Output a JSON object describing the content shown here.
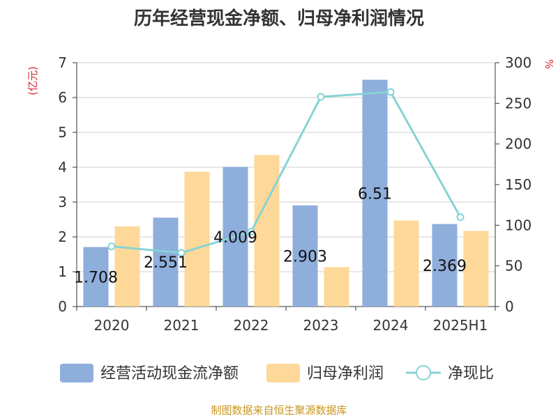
{
  "chart_data": {
    "type": "bar",
    "title": "历年经营现金净额、归母净利润情况",
    "categories": [
      "2020",
      "2021",
      "2022",
      "2023",
      "2024",
      "2025H1"
    ],
    "series": [
      {
        "name": "经营活动现金流净额",
        "type": "bar",
        "axis": "left",
        "color": "#8eaedc",
        "values": [
          1.708,
          2.551,
          4.009,
          2.903,
          6.51,
          2.369
        ],
        "labels": [
          "1.708",
          "2.551",
          "4.009",
          "2.903",
          "6.51",
          "2.369"
        ]
      },
      {
        "name": "归母净利润",
        "type": "bar",
        "axis": "left",
        "color": "#fdd898",
        "values": [
          2.3,
          3.87,
          4.35,
          1.13,
          2.47,
          2.17
        ]
      },
      {
        "name": "净现比",
        "type": "line",
        "axis": "right",
        "color": "#86d3d6",
        "values": [
          74,
          66,
          92,
          258,
          264,
          110
        ]
      }
    ],
    "y_left": {
      "label": "(亿元)",
      "min": 0,
      "max": 7,
      "ticks": [
        "0",
        "1",
        "2",
        "3",
        "4",
        "5",
        "6",
        "7"
      ]
    },
    "y_right": {
      "label": "%",
      "min": 0,
      "max": 300,
      "ticks": [
        "0",
        "50",
        "100",
        "150",
        "200",
        "250",
        "300"
      ]
    },
    "grid": true,
    "legend_position": "bottom"
  },
  "source_note": "制图数据来自恒生聚源数据库"
}
